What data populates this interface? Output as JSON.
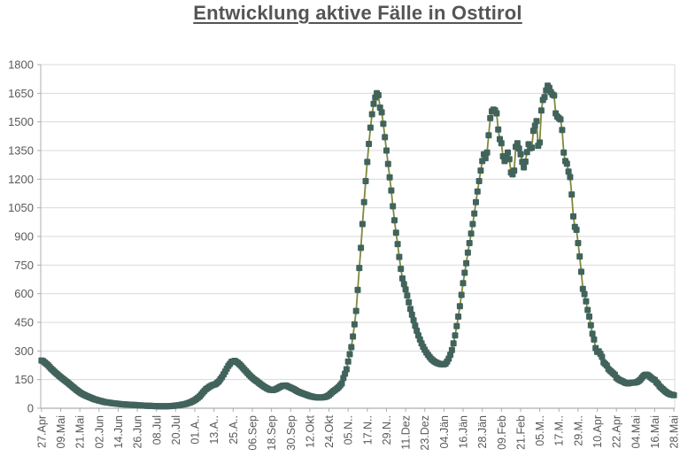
{
  "title": "Entwicklung aktive Fälle in Osttirol",
  "chart_data": {
    "type": "line",
    "title": "Entwicklung aktive Fälle in Osttirol",
    "xlabel": "",
    "ylabel": "",
    "ylim": [
      0,
      1800
    ],
    "y_ticks": [
      0,
      150,
      300,
      450,
      600,
      750,
      900,
      1050,
      1200,
      1350,
      1500,
      1650,
      1800
    ],
    "grid": "horizontal",
    "legend": "none",
    "n_points": 397,
    "points_per_tick": 12,
    "x_tick_labels": [
      "27.Apr",
      "09.Mai",
      "21.Mai",
      "02.Jun",
      "14.Jun",
      "26.Jun",
      "08.Jul",
      "20.Jul",
      "01.A..",
      "13.A..",
      "25.A..",
      "06.Sep",
      "18.Sep",
      "30.Sep",
      "12.Okt",
      "24.Okt",
      "05.N..",
      "17.N..",
      "29.N..",
      "11.Dez",
      "23.Dez",
      "04.Jän",
      "16.Jän",
      "28.Jän",
      "09.Feb",
      "21.Feb",
      "05.M..",
      "17.M..",
      "29.M..",
      "10.Apr",
      "22.Apr",
      "04.Mai",
      "16.Mai",
      "28.Mai"
    ],
    "style": {
      "line_color": "#7F8A3A",
      "marker_color": "#41635C",
      "marker_shape": "square",
      "marker_size": 7,
      "grid_color": "#D9D9D9",
      "axis_color": "#ADADAD",
      "tick_text_color": "#595959",
      "title_color": "#555555",
      "background": "#FFFFFF"
    },
    "series": [
      {
        "name": "aktive Fälle",
        "control_points": [
          [
            0,
            250
          ],
          [
            1,
            247
          ],
          [
            2,
            240
          ],
          [
            4,
            226
          ],
          [
            6,
            208
          ],
          [
            8,
            192
          ],
          [
            10,
            177
          ],
          [
            12,
            163
          ],
          [
            14,
            150
          ],
          [
            16,
            137
          ],
          [
            18,
            123
          ],
          [
            20,
            109
          ],
          [
            22,
            95
          ],
          [
            24,
            83
          ],
          [
            26,
            73
          ],
          [
            28,
            65
          ],
          [
            30,
            58
          ],
          [
            32,
            51
          ],
          [
            34,
            45
          ],
          [
            36,
            40
          ],
          [
            40,
            32
          ],
          [
            44,
            27
          ],
          [
            48,
            23
          ],
          [
            52,
            20
          ],
          [
            56,
            18
          ],
          [
            60,
            16
          ],
          [
            66,
            13
          ],
          [
            72,
            11
          ],
          [
            78,
            10
          ],
          [
            82,
            12
          ],
          [
            86,
            16
          ],
          [
            90,
            22
          ],
          [
            93,
            30
          ],
          [
            96,
            42
          ],
          [
            99,
            62
          ],
          [
            101,
            82
          ],
          [
            103,
            100
          ],
          [
            105,
            112
          ],
          [
            107,
            121
          ],
          [
            109,
            126
          ],
          [
            111,
            140
          ],
          [
            113,
            163
          ],
          [
            115,
            192
          ],
          [
            117,
            222
          ],
          [
            119,
            243
          ],
          [
            121,
            248
          ],
          [
            123,
            238
          ],
          [
            125,
            222
          ],
          [
            127,
            203
          ],
          [
            129,
            184
          ],
          [
            131,
            167
          ],
          [
            133,
            152
          ],
          [
            135,
            140
          ],
          [
            137,
            127
          ],
          [
            139,
            115
          ],
          [
            141,
            105
          ],
          [
            143,
            97
          ],
          [
            145,
            95
          ],
          [
            147,
            101
          ],
          [
            149,
            110
          ],
          [
            151,
            118
          ],
          [
            153,
            119
          ],
          [
            155,
            112
          ],
          [
            157,
            104
          ],
          [
            158,
            100
          ],
          [
            160,
            90
          ],
          [
            162,
            82
          ],
          [
            164,
            76
          ],
          [
            166,
            70
          ],
          [
            168,
            64
          ],
          [
            170,
            60
          ],
          [
            172,
            57
          ],
          [
            174,
            56
          ],
          [
            176,
            57
          ],
          [
            178,
            60
          ],
          [
            180,
            68
          ],
          [
            182,
            84
          ],
          [
            184,
            97
          ],
          [
            186,
            110
          ],
          [
            188,
            130
          ],
          [
            189,
            158
          ],
          [
            191,
            204
          ],
          [
            192,
            245
          ],
          [
            193,
            283
          ],
          [
            194,
            320
          ],
          [
            195,
            376
          ],
          [
            196,
            440
          ],
          [
            197,
            510
          ],
          [
            198,
            620
          ],
          [
            199,
            735
          ],
          [
            200,
            840
          ],
          [
            201,
            965
          ],
          [
            202,
            1080
          ],
          [
            203,
            1190
          ],
          [
            204,
            1290
          ],
          [
            205,
            1385
          ],
          [
            206,
            1470
          ],
          [
            207,
            1540
          ],
          [
            208,
            1595
          ],
          [
            209,
            1628
          ],
          [
            210,
            1650
          ],
          [
            211,
            1640
          ],
          [
            212,
            1575
          ],
          [
            213,
            1550
          ],
          [
            214,
            1490
          ],
          [
            215,
            1420
          ],
          [
            216,
            1350
          ],
          [
            217,
            1280
          ],
          [
            218,
            1210
          ],
          [
            219,
            1141
          ],
          [
            220,
            1058
          ],
          [
            221,
            985
          ],
          [
            222,
            920
          ],
          [
            223,
            860
          ],
          [
            224,
            793
          ],
          [
            225,
            730
          ],
          [
            226,
            680
          ],
          [
            227,
            650
          ],
          [
            228,
            622
          ],
          [
            229,
            590
          ],
          [
            230,
            555
          ],
          [
            231,
            520
          ],
          [
            232,
            490
          ],
          [
            233,
            460
          ],
          [
            234,
            432
          ],
          [
            235,
            406
          ],
          [
            236,
            382
          ],
          [
            237,
            360
          ],
          [
            238,
            340
          ],
          [
            239,
            322
          ],
          [
            240,
            306
          ],
          [
            241,
            292
          ],
          [
            242,
            280
          ],
          [
            243,
            269
          ],
          [
            244,
            259
          ],
          [
            245,
            251
          ],
          [
            246,
            245
          ],
          [
            247,
            240
          ],
          [
            248,
            236
          ],
          [
            249,
            233
          ],
          [
            250,
            231
          ],
          [
            251,
            230
          ],
          [
            252,
            230
          ],
          [
            253,
            234
          ],
          [
            254,
            245
          ],
          [
            255,
            260
          ],
          [
            256,
            280
          ],
          [
            257,
            305
          ],
          [
            258,
            340
          ],
          [
            259,
            382
          ],
          [
            260,
            430
          ],
          [
            261,
            480
          ],
          [
            262,
            535
          ],
          [
            263,
            594
          ],
          [
            264,
            655
          ],
          [
            265,
            710
          ],
          [
            266,
            760
          ],
          [
            267,
            815
          ],
          [
            268,
            865
          ],
          [
            269,
            915
          ],
          [
            270,
            965
          ],
          [
            271,
            1020
          ],
          [
            272,
            1080
          ],
          [
            273,
            1135
          ],
          [
            274,
            1190
          ],
          [
            275,
            1245
          ],
          [
            276,
            1295
          ],
          [
            277,
            1330
          ],
          [
            278,
            1310
          ],
          [
            279,
            1340
          ],
          [
            280,
            1430
          ],
          [
            281,
            1520
          ],
          [
            282,
            1555
          ],
          [
            283,
            1565
          ],
          [
            284,
            1560
          ],
          [
            285,
            1545
          ],
          [
            286,
            1460
          ],
          [
            287,
            1410
          ],
          [
            288,
            1388
          ],
          [
            289,
            1320
          ],
          [
            290,
            1295
          ],
          [
            291,
            1315
          ],
          [
            292,
            1340
          ],
          [
            293,
            1305
          ],
          [
            294,
            1235
          ],
          [
            295,
            1225
          ],
          [
            296,
            1245
          ],
          [
            297,
            1370
          ],
          [
            298,
            1388
          ],
          [
            299,
            1360
          ],
          [
            300,
            1330
          ],
          [
            301,
            1290
          ],
          [
            302,
            1262
          ],
          [
            303,
            1292
          ],
          [
            304,
            1342
          ],
          [
            305,
            1383
          ],
          [
            306,
            1362
          ],
          [
            307,
            1365
          ],
          [
            308,
            1453
          ],
          [
            309,
            1480
          ],
          [
            310,
            1504
          ],
          [
            311,
            1375
          ],
          [
            312,
            1392
          ],
          [
            313,
            1560
          ],
          [
            314,
            1615
          ],
          [
            315,
            1630
          ],
          [
            316,
            1665
          ],
          [
            317,
            1690
          ],
          [
            318,
            1678
          ],
          [
            319,
            1656
          ],
          [
            320,
            1643
          ],
          [
            321,
            1638
          ],
          [
            322,
            1545
          ],
          [
            323,
            1528
          ],
          [
            324,
            1520
          ],
          [
            325,
            1513
          ],
          [
            326,
            1458
          ],
          [
            327,
            1340
          ],
          [
            328,
            1295
          ],
          [
            329,
            1281
          ],
          [
            330,
            1240
          ],
          [
            331,
            1211
          ],
          [
            332,
            1120
          ],
          [
            333,
            1005
          ],
          [
            334,
            950
          ],
          [
            335,
            935
          ],
          [
            336,
            865
          ],
          [
            337,
            795
          ],
          [
            338,
            715
          ],
          [
            339,
            625
          ],
          [
            340,
            598
          ],
          [
            341,
            560
          ],
          [
            342,
            515
          ],
          [
            343,
            480
          ],
          [
            344,
            435
          ],
          [
            345,
            390
          ],
          [
            346,
            360
          ],
          [
            347,
            315
          ],
          [
            348,
            295
          ],
          [
            349,
            298
          ],
          [
            350,
            285
          ],
          [
            351,
            269
          ],
          [
            352,
            240
          ],
          [
            353,
            232
          ],
          [
            354,
            223
          ],
          [
            355,
            205
          ],
          [
            356,
            197
          ],
          [
            357,
            190
          ],
          [
            358,
            182
          ],
          [
            359,
            176
          ],
          [
            360,
            160
          ],
          [
            361,
            153
          ],
          [
            362,
            148
          ],
          [
            363,
            144
          ],
          [
            364,
            140
          ],
          [
            365,
            136
          ],
          [
            366,
            132
          ],
          [
            367,
            130
          ],
          [
            368,
            131
          ],
          [
            369,
            133
          ],
          [
            370,
            134
          ],
          [
            371,
            134
          ],
          [
            372,
            135
          ],
          [
            373,
            138
          ],
          [
            374,
            143
          ],
          [
            375,
            150
          ],
          [
            376,
            160
          ],
          [
            377,
            170
          ],
          [
            378,
            175
          ],
          [
            379,
            176
          ],
          [
            380,
            172
          ],
          [
            381,
            165
          ],
          [
            382,
            158
          ],
          [
            383,
            152
          ],
          [
            384,
            148
          ],
          [
            385,
            136
          ],
          [
            386,
            128
          ],
          [
            387,
            116
          ],
          [
            388,
            108
          ],
          [
            389,
            100
          ],
          [
            390,
            93
          ],
          [
            391,
            86
          ],
          [
            392,
            80
          ],
          [
            393,
            75
          ],
          [
            394,
            72
          ],
          [
            395,
            70
          ],
          [
            396,
            68
          ]
        ]
      }
    ]
  }
}
